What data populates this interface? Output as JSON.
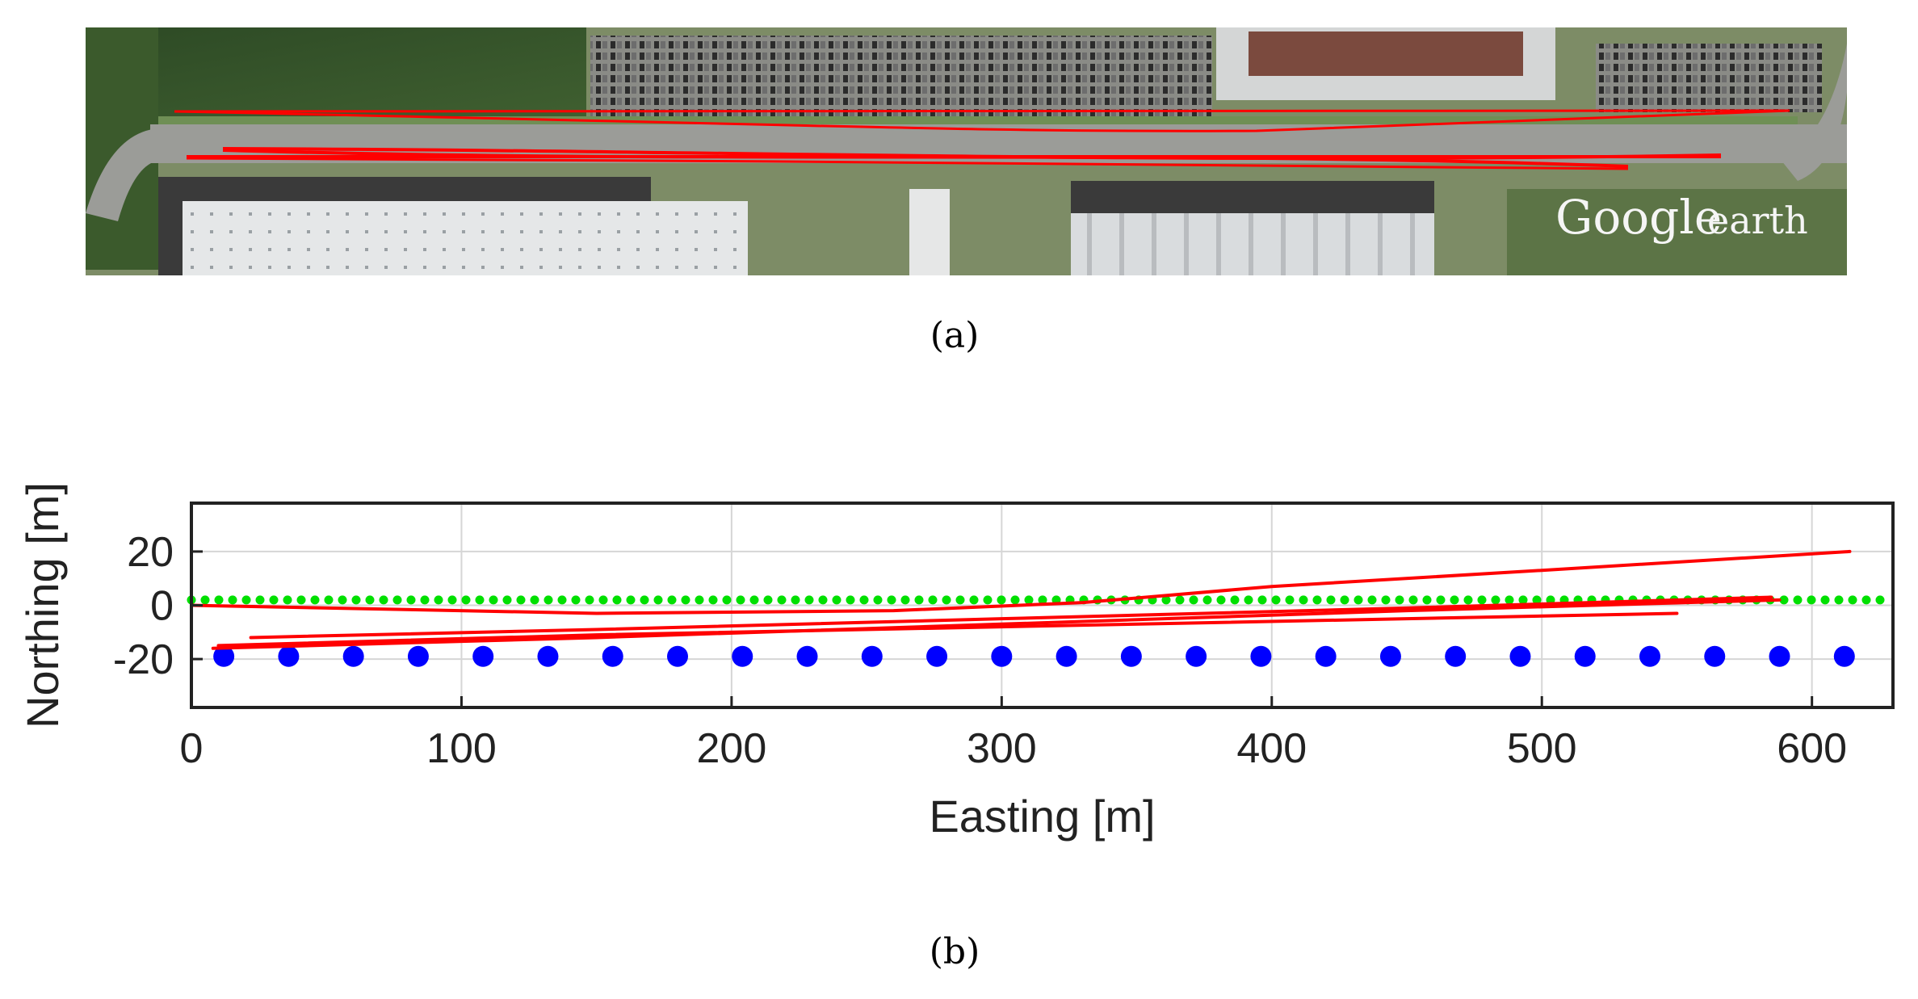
{
  "panel_a": {
    "caption": "(a)",
    "watermark_brand": "Google",
    "watermark_product": "earth",
    "track_color": "#ff0000"
  },
  "panel_b": {
    "caption": "(b)"
  },
  "chart_data": {
    "type": "scatter",
    "xlabel": "Easting [m]",
    "ylabel": "Northing [m]",
    "xlim": [
      0,
      630
    ],
    "ylim": [
      -38,
      38
    ],
    "xticks": [
      0,
      100,
      200,
      300,
      400,
      500,
      600
    ],
    "yticks": [
      -20,
      0,
      20
    ],
    "grid": true,
    "series": [
      {
        "style": "dotted-line",
        "color": "#00e000",
        "x": [
          0,
          630
        ],
        "y": [
          2,
          2
        ]
      },
      {
        "style": "markers",
        "color": "#0000ff",
        "x": [
          12,
          36,
          60,
          84,
          108,
          132,
          156,
          180,
          204,
          228,
          252,
          276,
          300,
          324,
          348,
          372,
          396,
          420,
          444,
          468,
          492,
          516,
          540,
          564,
          588,
          612
        ],
        "y": [
          -19,
          -19,
          -19,
          -19,
          -19,
          -19,
          -19,
          -19,
          -19,
          -19,
          -19,
          -19,
          -19,
          -19,
          -19,
          -19,
          -19,
          -19,
          -19,
          -19,
          -19,
          -19,
          -19,
          -19,
          -19,
          -19
        ]
      },
      {
        "style": "line",
        "color": "#ff0000",
        "x": [
          0,
          150,
          260,
          330,
          400,
          500,
          614
        ],
        "y": [
          0,
          -3,
          -2,
          1,
          7,
          13,
          20
        ]
      },
      {
        "style": "line",
        "color": "#ff0000",
        "x": [
          8,
          150,
          300,
          450,
          588
        ],
        "y": [
          -16,
          -12,
          -7,
          -2,
          2
        ]
      },
      {
        "style": "line",
        "color": "#ff0000",
        "x": [
          22,
          150,
          300,
          450,
          585
        ],
        "y": [
          -12,
          -9,
          -5,
          -1,
          3
        ]
      },
      {
        "style": "line",
        "color": "#ff0000",
        "x": [
          10,
          150,
          300,
          450,
          550
        ],
        "y": [
          -15,
          -11,
          -8,
          -5,
          -3
        ]
      }
    ]
  }
}
